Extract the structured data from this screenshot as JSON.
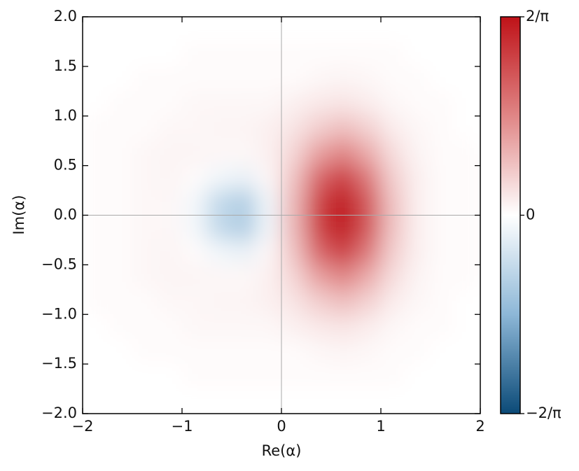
{
  "chart_data": {
    "type": "heatmap",
    "xlabel": "Re(α)",
    "ylabel": "Im(α)",
    "xlim": [
      -2,
      2
    ],
    "ylim": [
      -2,
      2
    ],
    "xticks": [
      {
        "value": -2,
        "label": "−2"
      },
      {
        "value": -1,
        "label": "−1"
      },
      0,
      1,
      2
    ],
    "yticks": [
      {
        "value": -2,
        "label": "−2.0"
      },
      {
        "value": -1.5,
        "label": "−1.5"
      },
      {
        "value": -1,
        "label": "−1.0"
      },
      {
        "value": -0.5,
        "label": "−0.5"
      },
      {
        "value": 0,
        "label": "0.0"
      },
      0.5,
      {
        "value": 1,
        "label": "1.0"
      },
      1.5,
      {
        "value": 2,
        "label": "2.0"
      }
    ],
    "x": [
      -1.875,
      -1.625,
      -1.375,
      -1.125,
      -0.875,
      -0.625,
      -0.375,
      -0.125,
      0.125,
      0.375,
      0.625,
      0.875,
      1.125,
      1.375,
      1.625,
      1.875
    ],
    "y": [
      1.875,
      1.625,
      1.375,
      1.125,
      0.875,
      0.625,
      0.375,
      0.125,
      -0.125,
      -0.375,
      -0.625,
      -0.875,
      -1.125,
      -1.375,
      -1.625,
      -1.875
    ],
    "z": [
      [
        0,
        0,
        0,
        0,
        0,
        0,
        0,
        0,
        0,
        0,
        0,
        0,
        0,
        0,
        0,
        0
      ],
      [
        0,
        0,
        0,
        0,
        0.01,
        0.01,
        0.01,
        0.01,
        0.01,
        0.01,
        0.01,
        0.01,
        0.01,
        0,
        0,
        0
      ],
      [
        0,
        0,
        0.01,
        0.01,
        0.01,
        0.01,
        0.01,
        0.01,
        0.01,
        0.02,
        0.03,
        0.02,
        0.01,
        0.01,
        0,
        0
      ],
      [
        0,
        0.01,
        0.01,
        0.01,
        0.02,
        0.02,
        0.02,
        0.02,
        0.04,
        0.06,
        0.07,
        0.05,
        0.02,
        0.01,
        0.01,
        0
      ],
      [
        0.01,
        0.01,
        0.01,
        0.02,
        0.02,
        0.03,
        0.03,
        0.04,
        0.07,
        0.13,
        0.17,
        0.12,
        0.05,
        0.02,
        0.01,
        0
      ],
      [
        0.01,
        0.01,
        0.02,
        0.03,
        0.03,
        0.02,
        0.02,
        0.04,
        0.11,
        0.25,
        0.32,
        0.22,
        0.09,
        0.03,
        0.01,
        0.01
      ],
      [
        0.01,
        0.01,
        0.02,
        0.03,
        0.01,
        -0.04,
        -0.06,
        0.02,
        0.16,
        0.4,
        0.51,
        0.35,
        0.13,
        0.04,
        0.01,
        0.01
      ],
      [
        0.01,
        0.01,
        0.02,
        0.02,
        -0.03,
        -0.17,
        -0.22,
        -0.04,
        0.19,
        0.5,
        0.63,
        0.44,
        0.16,
        0.04,
        0.01,
        0.01
      ],
      [
        0.01,
        0.01,
        0.02,
        0.02,
        -0.03,
        -0.17,
        -0.22,
        -0.04,
        0.19,
        0.5,
        0.63,
        0.44,
        0.16,
        0.04,
        0.01,
        0.01
      ],
      [
        0.01,
        0.01,
        0.02,
        0.03,
        0.01,
        -0.04,
        -0.06,
        0.02,
        0.16,
        0.4,
        0.51,
        0.35,
        0.13,
        0.04,
        0.01,
        0.01
      ],
      [
        0.01,
        0.01,
        0.02,
        0.03,
        0.03,
        0.02,
        0.02,
        0.04,
        0.11,
        0.25,
        0.32,
        0.22,
        0.09,
        0.03,
        0.01,
        0.01
      ],
      [
        0.01,
        0.01,
        0.01,
        0.02,
        0.02,
        0.03,
        0.03,
        0.04,
        0.07,
        0.13,
        0.17,
        0.12,
        0.05,
        0.02,
        0.01,
        0
      ],
      [
        0,
        0.01,
        0.01,
        0.01,
        0.02,
        0.02,
        0.02,
        0.02,
        0.04,
        0.06,
        0.07,
        0.05,
        0.02,
        0.01,
        0.01,
        0
      ],
      [
        0,
        0,
        0.01,
        0.01,
        0.01,
        0.01,
        0.01,
        0.01,
        0.01,
        0.02,
        0.03,
        0.02,
        0.01,
        0.01,
        0,
        0
      ],
      [
        0,
        0,
        0,
        0,
        0.01,
        0.01,
        0.01,
        0.01,
        0.01,
        0.01,
        0.01,
        0.01,
        0.01,
        0,
        0,
        0
      ],
      [
        0,
        0,
        0,
        0,
        0,
        0,
        0,
        0,
        0,
        0,
        0,
        0,
        0,
        0,
        0,
        0
      ]
    ],
    "clim": [
      -0.6366,
      0.6366
    ],
    "cticks": [
      {
        "value": -0.6366,
        "label": "−2/π"
      },
      0,
      {
        "value": 0.6366,
        "label": "2/π"
      }
    ],
    "colormap": [
      "#0b4a77",
      "#8db7d7",
      "#ffffff",
      "#e08686",
      "#bf1218"
    ],
    "zero_lines": true
  }
}
